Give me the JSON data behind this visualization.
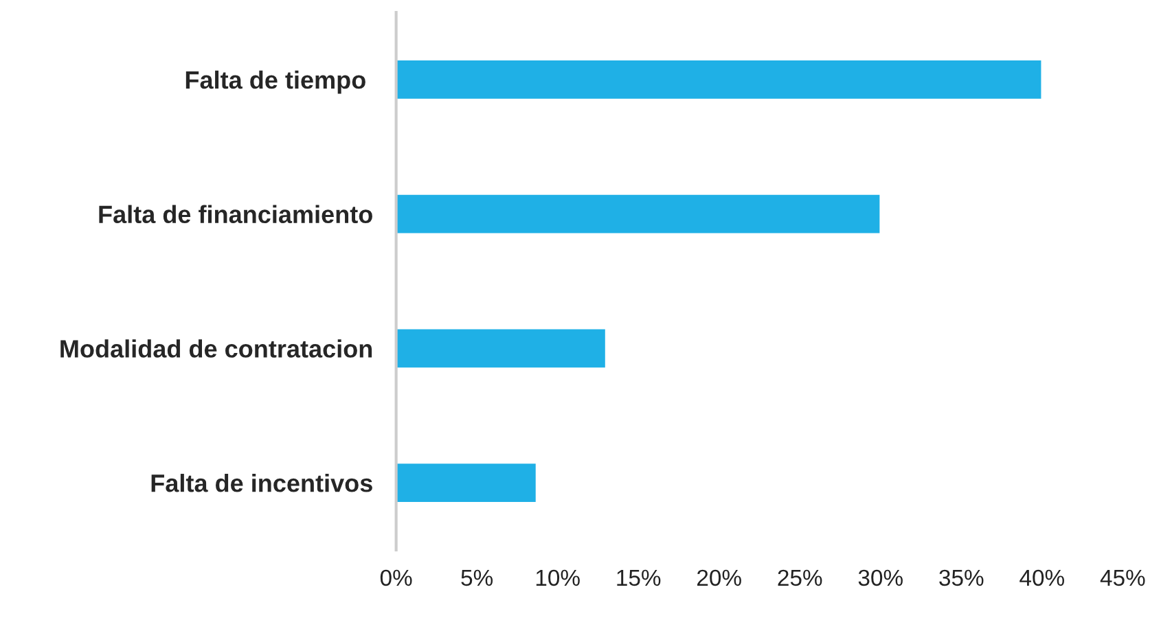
{
  "chart_data": {
    "type": "bar",
    "orientation": "horizontal",
    "categories": [
      "Falta de tiempo ",
      "Falta de financiamiento",
      "Modalidad de contratacion",
      "Falta de incentivos"
    ],
    "series": [
      {
        "color": "#1fb0e6",
        "values": [
          40,
          30,
          13,
          8.7
        ]
      }
    ],
    "xlim": [
      0,
      45
    ],
    "xticks": [
      {
        "value": 0,
        "label": "0%"
      },
      {
        "value": 5,
        "label": "5%"
      },
      {
        "value": 10,
        "label": "10%"
      },
      {
        "value": 15,
        "label": "15%"
      },
      {
        "value": 20,
        "label": "20%"
      },
      {
        "value": 25,
        "label": "25%"
      },
      {
        "value": 30,
        "label": "30%"
      },
      {
        "value": 35,
        "label": "35%"
      },
      {
        "value": 40,
        "label": "40%"
      },
      {
        "value": 45,
        "label": "45%"
      }
    ],
    "grid": false,
    "legend": false
  }
}
